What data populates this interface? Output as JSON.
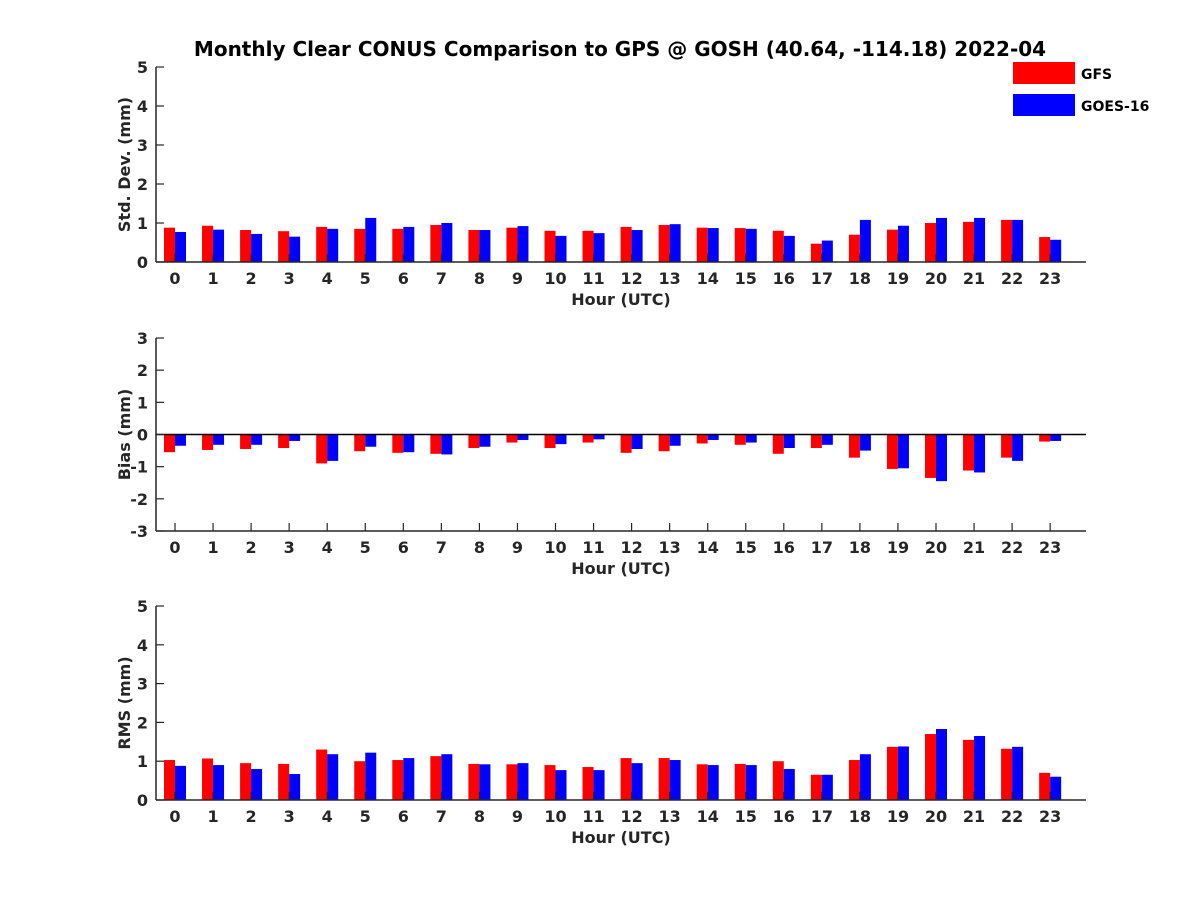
{
  "title": "Monthly Clear CONUS Comparison to GPS @ GOSH (40.64, -114.18) 2022-04",
  "legend": [
    {
      "name": "GFS",
      "color": "#ff0000"
    },
    {
      "name": "GOES-16",
      "color": "#0000ff"
    }
  ],
  "chart_data": [
    {
      "type": "bar",
      "title": "",
      "xlabel": "Hour (UTC)",
      "ylabel": "Std. Dev. (mm)",
      "ylim": [
        0,
        5
      ],
      "yticks": [
        0,
        1,
        2,
        3,
        4,
        5
      ],
      "categories": [
        "0",
        "1",
        "2",
        "3",
        "4",
        "5",
        "6",
        "7",
        "8",
        "9",
        "10",
        "11",
        "12",
        "13",
        "14",
        "15",
        "16",
        "17",
        "18",
        "19",
        "20",
        "21",
        "22",
        "23"
      ],
      "series": [
        {
          "name": "GFS",
          "color": "#ff0000",
          "values": [
            0.88,
            0.93,
            0.82,
            0.79,
            0.9,
            0.85,
            0.85,
            0.95,
            0.82,
            0.88,
            0.8,
            0.8,
            0.9,
            0.95,
            0.88,
            0.87,
            0.8,
            0.47,
            0.7,
            0.83,
            1.0,
            1.03,
            1.08,
            0.64
          ]
        },
        {
          "name": "GOES-16",
          "color": "#0000ff",
          "values": [
            0.77,
            0.83,
            0.72,
            0.65,
            0.85,
            1.13,
            0.9,
            1.0,
            0.82,
            0.92,
            0.67,
            0.74,
            0.82,
            0.97,
            0.87,
            0.85,
            0.67,
            0.55,
            1.08,
            0.93,
            1.13,
            1.13,
            1.08,
            0.57
          ]
        }
      ]
    },
    {
      "type": "bar",
      "title": "",
      "xlabel": "Hour (UTC)",
      "ylabel": "Bias (mm)",
      "ylim": [
        -3,
        3
      ],
      "yticks": [
        -3,
        -2,
        -1,
        0,
        1,
        2,
        3
      ],
      "baseline": true,
      "categories": [
        "0",
        "1",
        "2",
        "3",
        "4",
        "5",
        "6",
        "7",
        "8",
        "9",
        "10",
        "11",
        "12",
        "13",
        "14",
        "15",
        "16",
        "17",
        "18",
        "19",
        "20",
        "21",
        "22",
        "23"
      ],
      "series": [
        {
          "name": "GFS",
          "color": "#ff0000",
          "values": [
            -0.55,
            -0.48,
            -0.45,
            -0.42,
            -0.9,
            -0.52,
            -0.57,
            -0.6,
            -0.42,
            -0.25,
            -0.42,
            -0.25,
            -0.57,
            -0.52,
            -0.28,
            -0.32,
            -0.6,
            -0.42,
            -0.72,
            -1.07,
            -1.35,
            -1.12,
            -0.72,
            -0.22
          ]
        },
        {
          "name": "GOES-16",
          "color": "#0000ff",
          "values": [
            -0.35,
            -0.32,
            -0.32,
            -0.2,
            -0.82,
            -0.38,
            -0.55,
            -0.62,
            -0.38,
            -0.17,
            -0.3,
            -0.15,
            -0.45,
            -0.35,
            -0.17,
            -0.25,
            -0.42,
            -0.32,
            -0.5,
            -1.05,
            -1.45,
            -1.18,
            -0.82,
            -0.2
          ]
        }
      ]
    },
    {
      "type": "bar",
      "title": "",
      "xlabel": "Hour (UTC)",
      "ylabel": "RMS (mm)",
      "ylim": [
        0,
        5
      ],
      "yticks": [
        0,
        1,
        2,
        3,
        4,
        5
      ],
      "categories": [
        "0",
        "1",
        "2",
        "3",
        "4",
        "5",
        "6",
        "7",
        "8",
        "9",
        "10",
        "11",
        "12",
        "13",
        "14",
        "15",
        "16",
        "17",
        "18",
        "19",
        "20",
        "21",
        "22",
        "23"
      ],
      "series": [
        {
          "name": "GFS",
          "color": "#ff0000",
          "values": [
            1.03,
            1.07,
            0.95,
            0.93,
            1.3,
            1.0,
            1.03,
            1.13,
            0.93,
            0.92,
            0.9,
            0.85,
            1.08,
            1.08,
            0.92,
            0.93,
            1.0,
            0.65,
            1.03,
            1.37,
            1.7,
            1.55,
            1.32,
            0.7
          ]
        },
        {
          "name": "GOES-16",
          "color": "#0000ff",
          "values": [
            0.88,
            0.9,
            0.8,
            0.67,
            1.18,
            1.22,
            1.08,
            1.18,
            0.92,
            0.95,
            0.77,
            0.77,
            0.95,
            1.03,
            0.9,
            0.9,
            0.8,
            0.65,
            1.18,
            1.38,
            1.83,
            1.65,
            1.37,
            0.6
          ]
        }
      ]
    }
  ]
}
